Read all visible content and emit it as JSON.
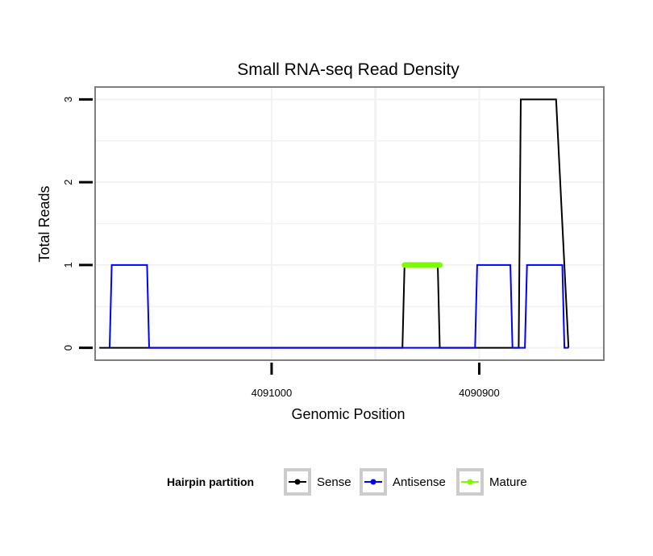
{
  "chart_data": {
    "type": "line",
    "title": "Small RNA-seq Read Density",
    "xlabel": "Genomic Position",
    "ylabel": "Total Reads",
    "xlim": [
      4091085,
      4090840
    ],
    "ylim": [
      -0.15,
      3.15
    ],
    "x_reversed": true,
    "x_ticks": [
      4091000,
      4090900
    ],
    "x_tick_labels": [
      "4091000",
      "4090900"
    ],
    "y_ticks": [
      0,
      1,
      2,
      3
    ],
    "y_tick_labels": [
      "0",
      "1",
      "2",
      "3"
    ],
    "grid": true,
    "legend": {
      "title": "Hairpin partition",
      "placement": "bottom"
    },
    "series": [
      {
        "name": "Sense",
        "color": "#000000",
        "x": [
          4091083,
          4090937,
          4090936,
          4090920,
          4090919,
          4090902,
          4090881,
          4090880,
          4090864,
          4090863,
          4090857
        ],
        "y": [
          0,
          0,
          1,
          1,
          0,
          0,
          0,
          3,
          3,
          3,
          0
        ]
      },
      {
        "name": "Antisense",
        "color": "#0000ff",
        "x": [
          4091078,
          4091077,
          4091060,
          4091059,
          4090937,
          4090902,
          4090901,
          4090885,
          4090884,
          4090878,
          4090877,
          4090860,
          4090859,
          4090857
        ],
        "y": [
          0,
          1,
          1,
          0,
          0,
          0,
          1,
          1,
          0,
          0,
          1,
          1,
          0,
          0
        ]
      },
      {
        "name": "Mature",
        "color": "#7cfc00",
        "x": [
          4090936,
          4090919
        ],
        "y": [
          1,
          1
        ]
      }
    ]
  }
}
